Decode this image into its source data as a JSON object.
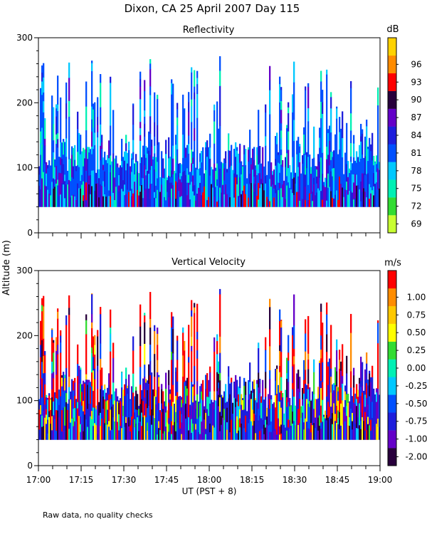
{
  "figure": {
    "title": "Dixon, CA 25 April 2007  Day 115",
    "shared_ylabel": "Altitude (m)",
    "xlabel": "UT  (PST + 8)",
    "footnote": "Raw data, no quality checks"
  },
  "chart_data": [
    {
      "type": "heatmap",
      "title": "Reflectivity",
      "ylim": [
        0,
        300
      ],
      "yticks": [
        "0",
        "100",
        "200",
        "300"
      ],
      "xlim": [
        "17:00",
        "19:00"
      ],
      "xticks": [
        "17:00",
        "17:15",
        "17:30",
        "17:45",
        "18:00",
        "18:15",
        "18:30",
        "18:45",
        "19:00"
      ],
      "data_altitude_range_m": [
        40,
        280
      ],
      "colorbar": {
        "unit": "dB",
        "labels": [
          "69",
          "72",
          "75",
          "78",
          "81",
          "84",
          "87",
          "90",
          "93",
          "96"
        ],
        "colors": [
          "#c8ff32",
          "#32dc32",
          "#00f0b4",
          "#00c8ff",
          "#0050ff",
          "#1e1edc",
          "#6400c8",
          "#28003c",
          "#ff0000",
          "#ff8c00",
          "#ffd200"
        ],
        "dominant_values": [
          "78",
          "81",
          "84"
        ]
      }
    },
    {
      "type": "heatmap",
      "title": "Vertical Velocity",
      "ylim": [
        0,
        300
      ],
      "yticks": [
        "0",
        "100",
        "200",
        "300"
      ],
      "xlim": [
        "17:00",
        "19:00"
      ],
      "xticks": [
        "17:00",
        "17:15",
        "17:30",
        "17:45",
        "18:00",
        "18:15",
        "18:30",
        "18:45",
        "19:00"
      ],
      "data_altitude_range_m": [
        40,
        280
      ],
      "colorbar": {
        "unit": "m/s",
        "labels": [
          "-2.00",
          "-1.00",
          "-0.75",
          "-0.50",
          "-0.25",
          "0.00",
          "0.25",
          "0.50",
          "0.75",
          "1.00"
        ],
        "colors": [
          "#28003c",
          "#6400c8",
          "#1e1edc",
          "#0050ff",
          "#00c8ff",
          "#00f0b4",
          "#32dc32",
          "#ffff00",
          "#ffc800",
          "#ff8c00",
          "#ff0000"
        ],
        "dominant_values": [
          "-0.50",
          "1.00"
        ]
      }
    }
  ]
}
